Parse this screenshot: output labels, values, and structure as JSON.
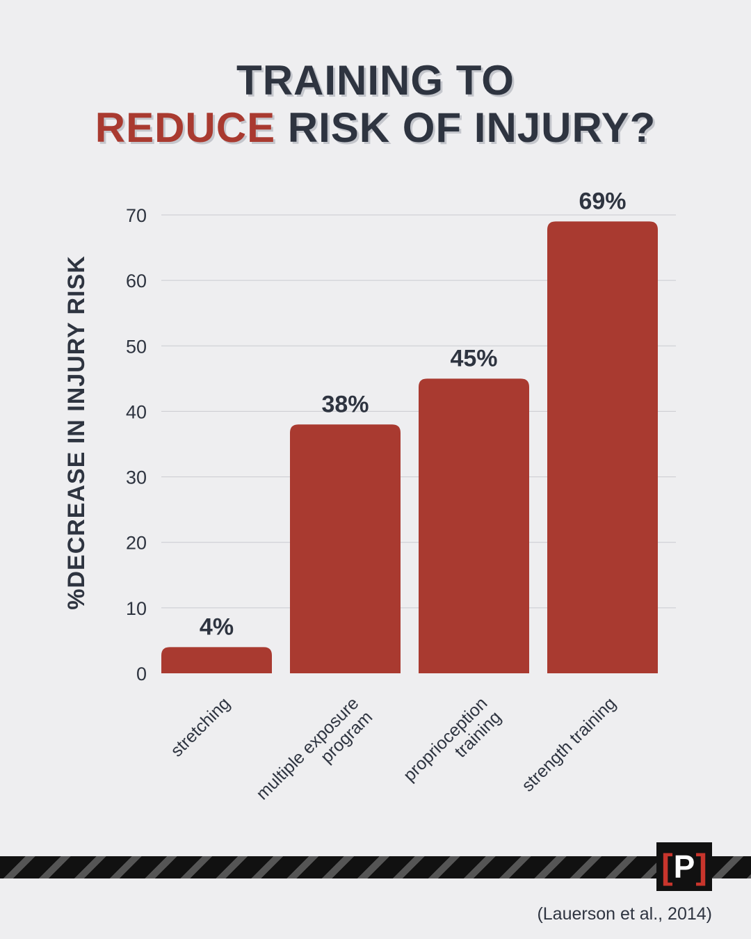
{
  "title": {
    "line1": "TRAINING TO",
    "line2_accent": "REDUCE",
    "line2_rest": " RISK OF INJURY?"
  },
  "chart_data": {
    "type": "bar",
    "categories": [
      [
        "stretching"
      ],
      [
        "multiple exposure",
        "program"
      ],
      [
        "proprioception",
        "training"
      ],
      [
        "strength training"
      ]
    ],
    "values": [
      4,
      38,
      45,
      69
    ],
    "data_labels": [
      "4%",
      "38%",
      "45%",
      "69%"
    ],
    "ylabel": "%DECREASE IN INJURY RISK",
    "ylim": [
      0,
      70
    ],
    "yticks": [
      0,
      10,
      20,
      30,
      40,
      50,
      60,
      70
    ],
    "grid": true,
    "bar_color": "#a93a30"
  },
  "logo": {
    "left": "[",
    "mid": "P",
    "right": "]"
  },
  "citation": "(Lauerson et al., 2014)"
}
